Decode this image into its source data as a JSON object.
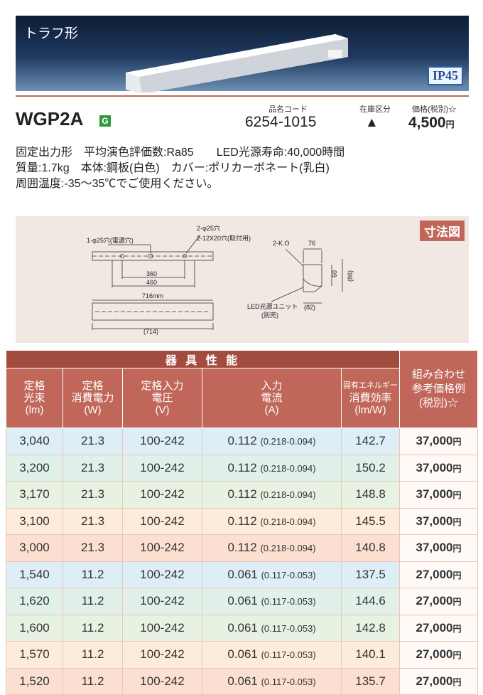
{
  "header": {
    "category": "トラフ形",
    "rating": "IP45"
  },
  "product": {
    "model": "WGP2A",
    "badge": "G",
    "code_label": "品名コード",
    "code": "6254-1015",
    "stock_label": "在庫区分",
    "stock": "▲",
    "price_label": "価格(税別)☆",
    "price": "4,500",
    "price_unit": "円"
  },
  "description": [
    "固定出力形　平均演色評価数:Ra85　　LED光源寿命:40,000時間",
    "質量:1.7kg　本体:鋼板(白色)　カバー:ポリカーボネート(乳白)",
    "周囲温度:-35〜35℃でご使用ください。"
  ],
  "diagram": {
    "title": "寸法図",
    "labels": [
      "1-φ25穴(電源穴)",
      "2-φ25穴",
      "2-12X20穴(取付用)",
      "360",
      "460",
      "716mm",
      "(714)",
      "2-K.O",
      "76",
      "60",
      "(86)",
      "LED光源ユニット",
      "(別売)",
      "(82)"
    ]
  },
  "table": {
    "group_header": "器 具 性 能",
    "columns": [
      [
        "定格",
        "光束",
        "(lm)"
      ],
      [
        "定格",
        "消費電力",
        "(W)"
      ],
      [
        "定格入力",
        "電圧",
        "(V)"
      ],
      [
        "入力",
        "電流",
        "(A)"
      ],
      [
        "固有エネルギー",
        "消費効率",
        "(lm/W)"
      ],
      [
        "組み合わせ",
        "参考価格例",
        "(税別)☆"
      ]
    ],
    "rows": [
      [
        "3,040",
        "21.3",
        "100-242",
        "0.112",
        "(0.218-0.094)",
        "142.7",
        "37,000",
        "円"
      ],
      [
        "3,200",
        "21.3",
        "100-242",
        "0.112",
        "(0.218-0.094)",
        "150.2",
        "37,000",
        "円"
      ],
      [
        "3,170",
        "21.3",
        "100-242",
        "0.112",
        "(0.218-0.094)",
        "148.8",
        "37,000",
        "円"
      ],
      [
        "3,100",
        "21.3",
        "100-242",
        "0.112",
        "(0.218-0.094)",
        "145.5",
        "37,000",
        "円"
      ],
      [
        "3,000",
        "21.3",
        "100-242",
        "0.112",
        "(0.218-0.094)",
        "140.8",
        "37,000",
        "円"
      ],
      [
        "1,540",
        "11.2",
        "100-242",
        "0.061",
        "(0.117-0.053)",
        "137.5",
        "27,000",
        "円"
      ],
      [
        "1,620",
        "11.2",
        "100-242",
        "0.061",
        "(0.117-0.053)",
        "144.6",
        "27,000",
        "円"
      ],
      [
        "1,600",
        "11.2",
        "100-242",
        "0.061",
        "(0.117-0.053)",
        "142.8",
        "27,000",
        "円"
      ],
      [
        "1,570",
        "11.2",
        "100-242",
        "0.061",
        "(0.117-0.053)",
        "140.1",
        "27,000",
        "円"
      ],
      [
        "1,520",
        "11.2",
        "100-242",
        "0.061",
        "(0.117-0.053)",
        "135.7",
        "27,000",
        "円"
      ]
    ]
  }
}
